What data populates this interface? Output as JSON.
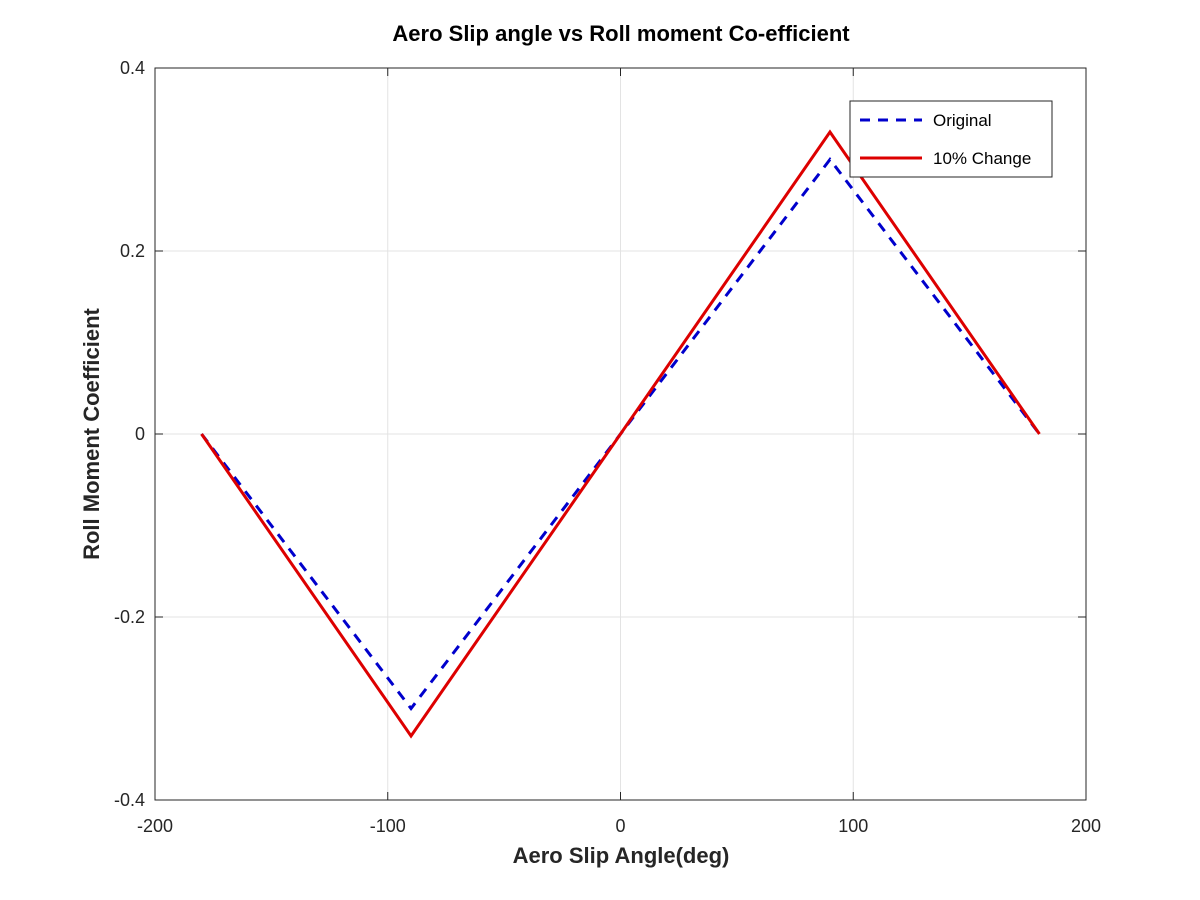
{
  "chart_data": {
    "type": "line",
    "title": "Aero Slip angle vs Roll moment Co-efficient",
    "xlabel": "Aero Slip Angle(deg)",
    "ylabel": "Roll Moment Coefficient",
    "xlim": [
      -200,
      200
    ],
    "ylim": [
      -0.4,
      0.4
    ],
    "xticks": [
      -200,
      -100,
      0,
      100,
      200
    ],
    "xtick_labels": [
      "-200",
      "-100",
      "0",
      "100",
      "200"
    ],
    "yticks": [
      -0.4,
      -0.2,
      0,
      0.2,
      0.4
    ],
    "ytick_labels": [
      "-0.4",
      "-0.2",
      "0",
      "0.2",
      "0.4"
    ],
    "grid": true,
    "legend_position": "top-right",
    "series": [
      {
        "name": "Original",
        "color": "#0000cc",
        "style": "dashed",
        "x": [
          -180,
          -90,
          0,
          90,
          180
        ],
        "y": [
          0,
          -0.3,
          0,
          0.3,
          0
        ]
      },
      {
        "name": "10% Change",
        "color": "#dd0000",
        "style": "solid",
        "x": [
          -180,
          -90,
          0,
          90,
          180
        ],
        "y": [
          0,
          -0.33,
          0,
          0.33,
          0
        ]
      }
    ]
  }
}
